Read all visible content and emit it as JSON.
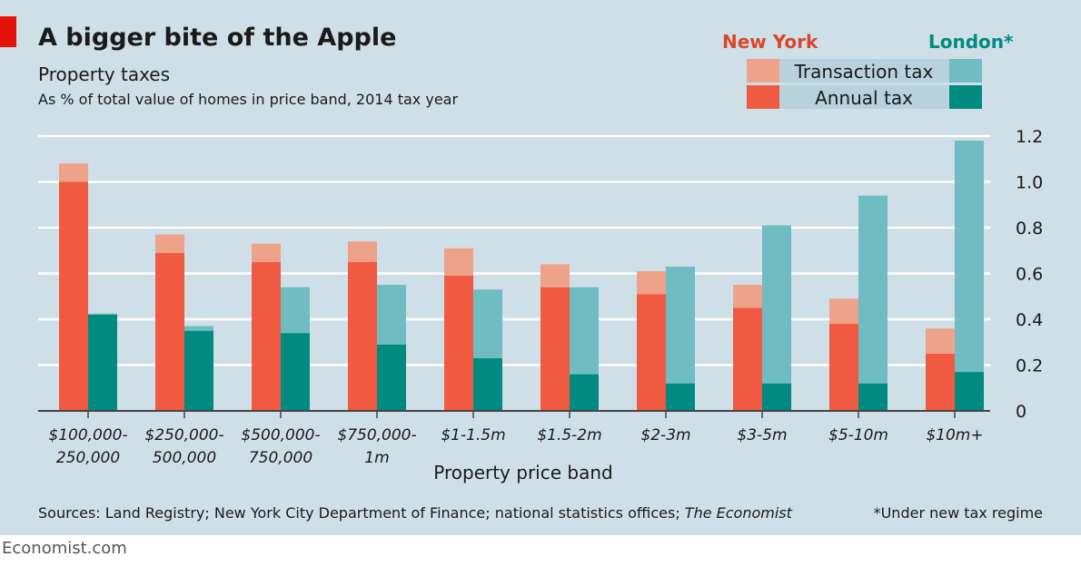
{
  "header": {
    "title": "A bigger bite of the Apple",
    "subtitle": "Property taxes",
    "description": "As % of total value of homes in price band, 2014 tax year"
  },
  "footer": {
    "source_prefix": "Sources: Land Registry; New York City Department of Finance; national statistics offices; ",
    "source_italic": "The Economist",
    "footnote": "*Under new tax regime",
    "brand": "Economist.com"
  },
  "legend": {
    "new_york": "New York",
    "london": "London*",
    "transaction": "Transaction tax",
    "annual": "Annual tax"
  },
  "colors": {
    "ny_annual": "#f05a40",
    "ny_transaction": "#eea289",
    "london_annual": "#008a80",
    "london_transaction": "#6fbcc1",
    "background": "#cfdfe7"
  },
  "chart_data": {
    "type": "bar",
    "stacked": true,
    "title": "A bigger bite of the Apple",
    "xlabel": "Property price band",
    "ylabel": "",
    "ylim": [
      0,
      1.2
    ],
    "yticks": [
      0,
      0.2,
      0.4,
      0.6,
      0.8,
      1.0,
      1.2
    ],
    "ytick_labels": [
      "0",
      "0.2",
      "0.4",
      "0.6",
      "0.8",
      "1.0",
      "1.2"
    ],
    "y_axis_position": "right",
    "grid": true,
    "legend_position": "top-right",
    "categories": [
      [
        "$100,000-",
        "250,000"
      ],
      [
        "$250,000-",
        "500,000"
      ],
      [
        "$500,000-",
        "750,000"
      ],
      [
        "$750,000-",
        "1m"
      ],
      [
        "$1-1.5m"
      ],
      [
        "$1.5-2m"
      ],
      [
        "$2-3m"
      ],
      [
        "$3-5m"
      ],
      [
        "$5-10m"
      ],
      [
        "$10m+"
      ]
    ],
    "series": [
      {
        "name": "New York Annual tax",
        "group": "New York",
        "values": [
          1.0,
          0.69,
          0.65,
          0.65,
          0.59,
          0.54,
          0.51,
          0.45,
          0.38,
          0.25
        ]
      },
      {
        "name": "New York Transaction tax",
        "group": "New York",
        "values": [
          0.08,
          0.08,
          0.08,
          0.09,
          0.12,
          0.1,
          0.1,
          0.1,
          0.11,
          0.11
        ]
      },
      {
        "name": "London Annual tax",
        "group": "London*",
        "values": [
          0.42,
          0.35,
          0.34,
          0.29,
          0.23,
          0.16,
          0.12,
          0.12,
          0.12,
          0.17
        ]
      },
      {
        "name": "London Transaction tax",
        "group": "London*",
        "values": [
          0.005,
          0.02,
          0.2,
          0.26,
          0.3,
          0.38,
          0.51,
          0.69,
          0.82,
          1.01
        ]
      }
    ]
  }
}
